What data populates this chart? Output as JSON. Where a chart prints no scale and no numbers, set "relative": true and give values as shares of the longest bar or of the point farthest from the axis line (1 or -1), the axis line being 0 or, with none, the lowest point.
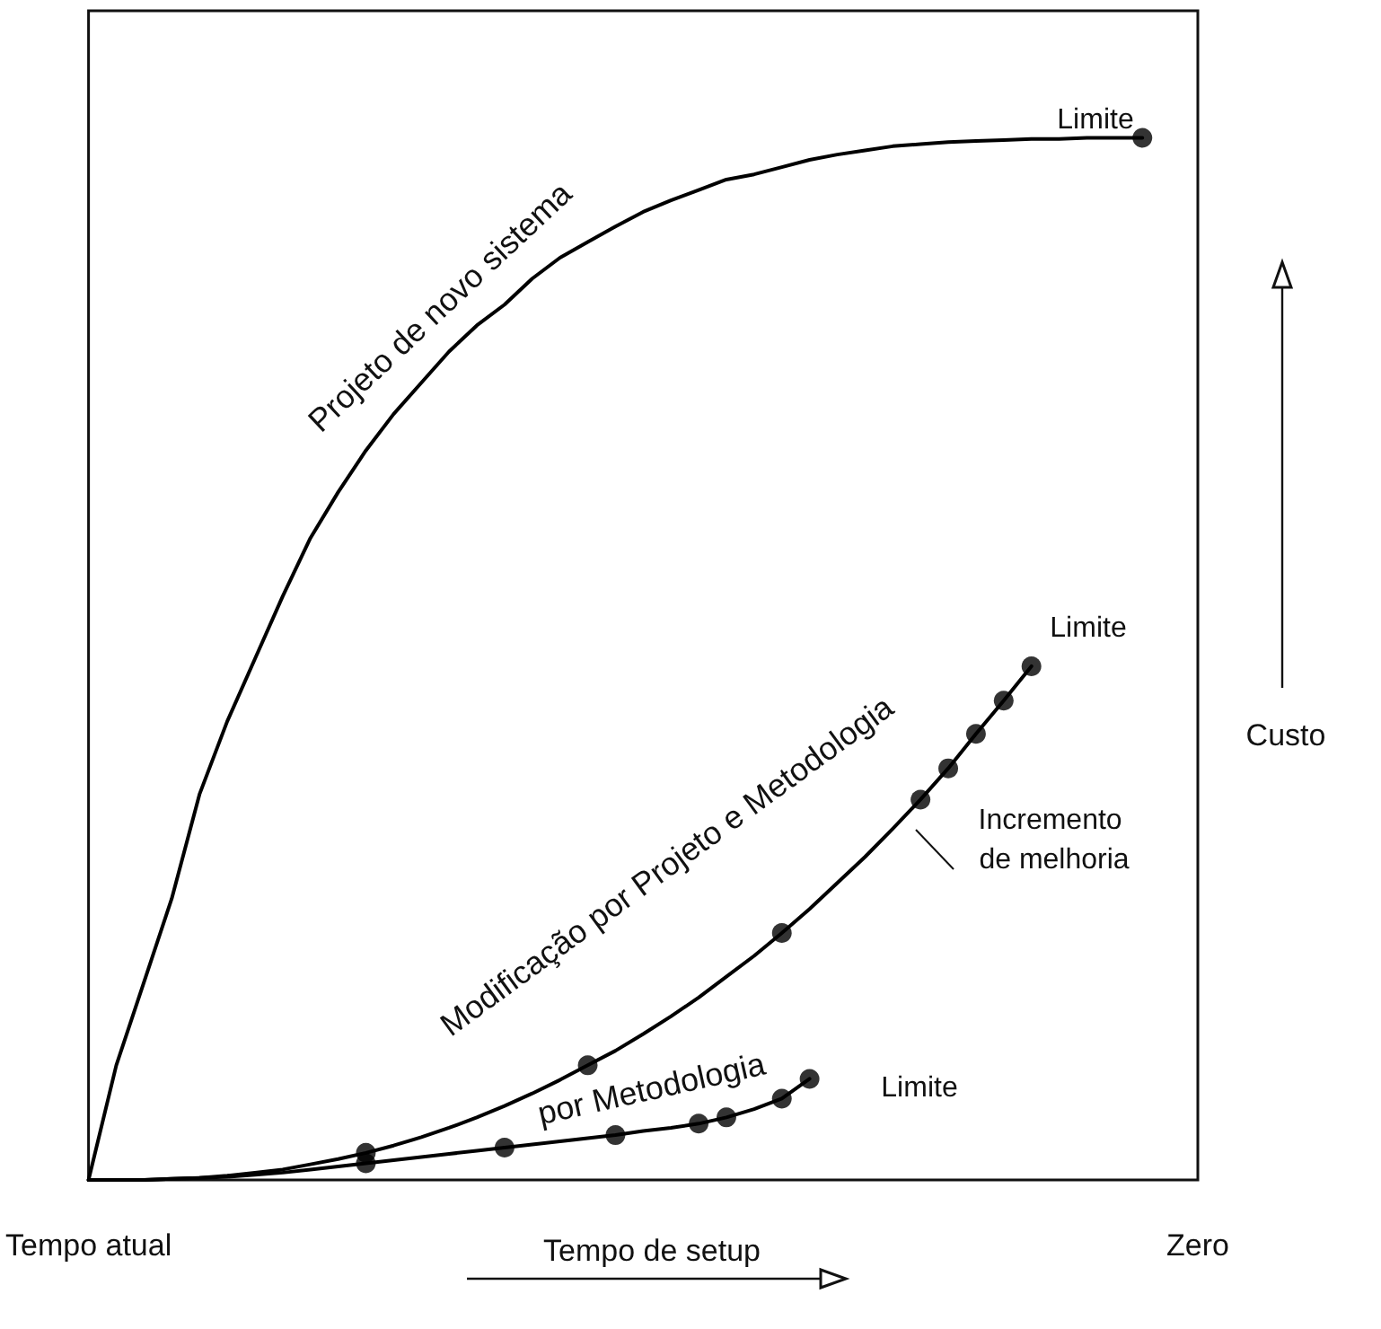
{
  "chart_data": {
    "type": "line",
    "relative": true,
    "xlabel": "Tempo de setup",
    "ylabel": "Custo",
    "categories": [
      "Tempo atual",
      null,
      null,
      null,
      null,
      null,
      null,
      null,
      null,
      null,
      null,
      null,
      null,
      null,
      null,
      null,
      null,
      null,
      null,
      null,
      null,
      null,
      null,
      null,
      null,
      null,
      null,
      null,
      null,
      null,
      null,
      null,
      null,
      null,
      null,
      null,
      null,
      null,
      null,
      null,
      "Zero"
    ],
    "grid": false,
    "legend": false,
    "line_style": "solid",
    "series": [
      {
        "name": "Projeto de novo sistema",
        "color": "#000000",
        "marker": "none",
        "values": [
          0,
          0.11,
          0.19,
          0.27,
          0.37,
          0.44,
          0.5,
          0.56,
          0.616,
          0.66,
          0.7,
          0.735,
          0.765,
          0.795,
          0.82,
          0.84,
          0.865,
          0.885,
          0.9,
          0.915,
          0.929,
          0.94,
          0.95,
          0.96,
          0.965,
          0.972,
          0.979,
          0.984,
          0.988,
          0.992,
          0.994,
          0.996,
          0.997,
          0.998,
          0.999,
          0.999,
          1,
          1,
          1,
          null,
          null
        ]
      },
      {
        "name": "Modificação por Projeto e Metodologia",
        "color": "#000000",
        "marker": "none",
        "values": [
          0,
          0,
          0,
          0.001,
          0.002,
          0.004,
          0.007,
          0.01,
          0.015,
          0.02,
          0.026,
          0.033,
          0.041,
          0.05,
          0.06,
          0.071,
          0.083,
          0.096,
          0.11,
          0.124,
          0.14,
          0.157,
          0.175,
          0.195,
          0.215,
          0.237,
          0.26,
          0.285,
          0.31,
          0.337,
          0.365,
          0.395,
          0.428,
          0.46,
          0.493,
          null,
          null,
          null,
          null,
          null,
          null
        ]
      },
      {
        "name": "por Metodologia",
        "color": "#000000",
        "marker": "none",
        "values": [
          0,
          0,
          0,
          0.001,
          0.002,
          0.003,
          0.005,
          0.007,
          0.01,
          0.013,
          0.016,
          0.019,
          0.022,
          0.025,
          0.028,
          0.031,
          0.034,
          0.037,
          0.04,
          0.043,
          0.047,
          0.05,
          0.054,
          0.06,
          0.068,
          0.078,
          0.097,
          null,
          null,
          null,
          null,
          null,
          null,
          null,
          null,
          null,
          null,
          null,
          null,
          null,
          null
        ]
      },
      {
        "type": "scatter",
        "color": "#000000",
        "marker": "circle",
        "values": [
          null,
          null,
          null,
          null,
          null,
          null,
          null,
          null,
          null,
          null,
          null,
          null,
          null,
          null,
          null,
          null,
          null,
          null,
          null,
          null,
          null,
          null,
          null,
          null,
          null,
          null,
          null,
          null,
          null,
          null,
          null,
          null,
          null,
          null,
          null,
          null,
          null,
          null,
          1,
          null,
          null
        ]
      },
      {
        "type": "scatter",
        "color": "#000000",
        "marker": "circle",
        "values": [
          null,
          null,
          null,
          null,
          null,
          null,
          null,
          null,
          null,
          null,
          0.026,
          null,
          null,
          null,
          null,
          null,
          null,
          null,
          0.11,
          null,
          null,
          null,
          null,
          null,
          null,
          0.237,
          null,
          null,
          null,
          null,
          0.365,
          0.395,
          0.428,
          0.46,
          0.493,
          null,
          null,
          null,
          null,
          null,
          null
        ]
      },
      {
        "type": "scatter",
        "color": "#000000",
        "marker": "circle",
        "values": [
          null,
          null,
          null,
          null,
          null,
          null,
          null,
          null,
          null,
          null,
          0.016,
          null,
          null,
          null,
          null,
          0.031,
          null,
          null,
          null,
          0.043,
          null,
          null,
          0.054,
          0.06,
          null,
          0.078,
          0.097,
          null,
          null,
          null,
          null,
          null,
          null,
          null,
          null,
          null,
          null,
          null,
          null,
          null,
          null
        ]
      }
    ],
    "annotations": [
      "Limite",
      "Limite",
      "Limite",
      "Incremento de melhoria"
    ]
  }
}
